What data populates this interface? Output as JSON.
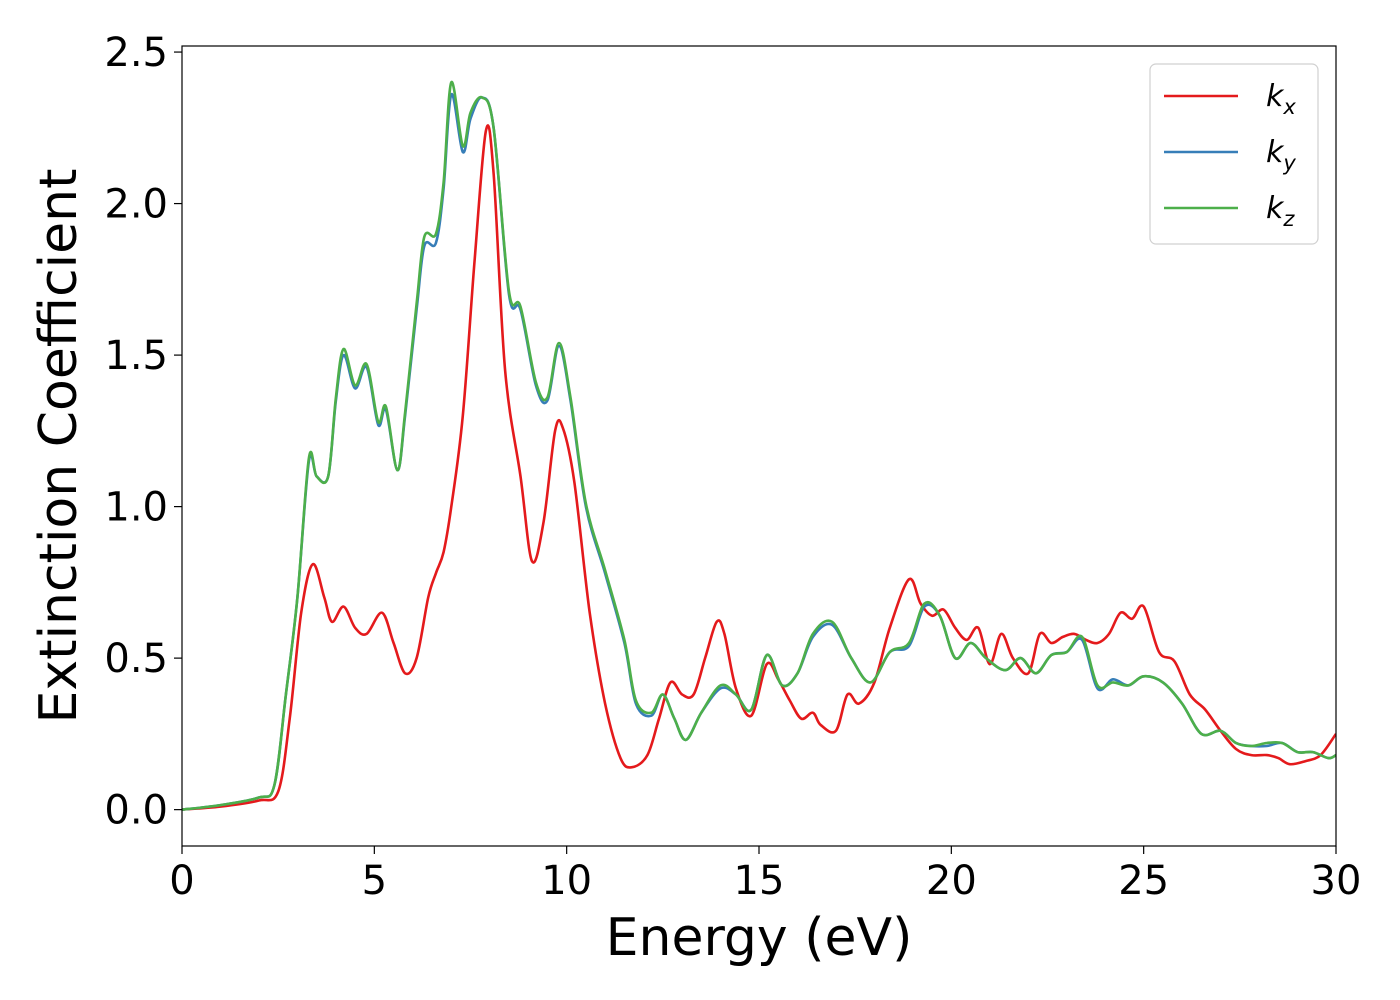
{
  "chart_data": {
    "type": "line",
    "xlabel": "Energy (eV)",
    "ylabel": "Extinction Coefficient",
    "xlim": [
      0,
      30
    ],
    "ylim": [
      -0.12,
      2.52
    ],
    "xticks": [
      0,
      5,
      10,
      15,
      20,
      25,
      30
    ],
    "xtick_labels": [
      "0",
      "5",
      "10",
      "15",
      "20",
      "25",
      "30"
    ],
    "yticks": [
      0.0,
      0.5,
      1.0,
      1.5,
      2.0,
      2.5
    ],
    "ytick_labels": [
      "0.0",
      "0.5",
      "1.0",
      "1.5",
      "2.0",
      "2.5"
    ],
    "grid": false,
    "legend_position": "top-right",
    "series": [
      {
        "name": "k",
        "subscript": "x",
        "color": "#e41a1c",
        "x": [
          0,
          1,
          2,
          2.5,
          2.8,
          3.1,
          3.4,
          3.7,
          3.9,
          4.2,
          4.5,
          4.8,
          5.2,
          5.5,
          5.8,
          6.1,
          6.4,
          6.6,
          6.8,
          7.0,
          7.3,
          7.6,
          7.9,
          8.1,
          8.4,
          8.8,
          9.1,
          9.4,
          9.7,
          9.9,
          10.2,
          10.6,
          11.0,
          11.4,
          11.7,
          12.1,
          12.4,
          12.7,
          13.0,
          13.3,
          13.6,
          13.9,
          14.1,
          14.4,
          14.8,
          15.2,
          15.5,
          15.8,
          16.1,
          16.4,
          16.6,
          17.0,
          17.3,
          17.6,
          18.0,
          18.4,
          18.9,
          19.2,
          19.5,
          19.8,
          20.1,
          20.4,
          20.7,
          21.0,
          21.3,
          21.6,
          22.0,
          22.3,
          22.6,
          22.9,
          23.2,
          23.5,
          23.8,
          24.1,
          24.4,
          24.7,
          25.0,
          25.4,
          25.8,
          26.2,
          26.6,
          27.0,
          27.4,
          27.8,
          28.2,
          28.5,
          28.8,
          29.2,
          29.6,
          30.0
        ],
        "y": [
          0.0,
          0.01,
          0.03,
          0.06,
          0.3,
          0.65,
          0.81,
          0.7,
          0.62,
          0.67,
          0.6,
          0.58,
          0.65,
          0.55,
          0.45,
          0.5,
          0.7,
          0.78,
          0.85,
          1.0,
          1.3,
          1.8,
          2.24,
          2.1,
          1.45,
          1.1,
          0.82,
          0.95,
          1.25,
          1.26,
          1.08,
          0.65,
          0.35,
          0.17,
          0.14,
          0.18,
          0.3,
          0.42,
          0.38,
          0.38,
          0.5,
          0.62,
          0.58,
          0.4,
          0.31,
          0.48,
          0.43,
          0.36,
          0.3,
          0.32,
          0.28,
          0.26,
          0.38,
          0.35,
          0.42,
          0.6,
          0.76,
          0.68,
          0.64,
          0.66,
          0.6,
          0.56,
          0.6,
          0.48,
          0.58,
          0.5,
          0.45,
          0.58,
          0.55,
          0.57,
          0.58,
          0.56,
          0.55,
          0.58,
          0.65,
          0.63,
          0.67,
          0.52,
          0.49,
          0.38,
          0.33,
          0.26,
          0.2,
          0.18,
          0.18,
          0.17,
          0.15,
          0.16,
          0.18,
          0.25
        ]
      },
      {
        "name": "k",
        "subscript": "y",
        "color": "#377eb8",
        "x": [
          0,
          1,
          2,
          2.4,
          2.7,
          3.0,
          3.3,
          3.5,
          3.8,
          4.0,
          4.2,
          4.5,
          4.8,
          5.1,
          5.3,
          5.6,
          5.8,
          6.1,
          6.3,
          6.6,
          6.8,
          7.0,
          7.3,
          7.5,
          7.8,
          8.1,
          8.5,
          8.8,
          9.2,
          9.5,
          9.8,
          10.1,
          10.5,
          11.0,
          11.5,
          11.8,
          12.2,
          12.5,
          12.8,
          13.1,
          13.5,
          14.0,
          14.4,
          14.8,
          15.2,
          15.6,
          16.0,
          16.4,
          16.9,
          17.4,
          17.9,
          18.4,
          18.9,
          19.3,
          19.7,
          20.1,
          20.5,
          20.9,
          21.4,
          21.8,
          22.2,
          22.6,
          23.0,
          23.4,
          23.8,
          24.2,
          24.6,
          25.0,
          25.5,
          26.0,
          26.5,
          27.0,
          27.4,
          27.8,
          28.2,
          28.6,
          29.0,
          29.4,
          29.8,
          30.0
        ],
        "y": [
          0.0,
          0.015,
          0.04,
          0.08,
          0.38,
          0.7,
          1.15,
          1.1,
          1.1,
          1.35,
          1.5,
          1.39,
          1.46,
          1.27,
          1.32,
          1.12,
          1.3,
          1.65,
          1.86,
          1.87,
          2.05,
          2.36,
          2.17,
          2.28,
          2.35,
          2.25,
          1.7,
          1.65,
          1.4,
          1.35,
          1.53,
          1.35,
          1.0,
          0.78,
          0.55,
          0.35,
          0.31,
          0.38,
          0.3,
          0.23,
          0.32,
          0.4,
          0.38,
          0.33,
          0.51,
          0.41,
          0.45,
          0.57,
          0.61,
          0.5,
          0.42,
          0.52,
          0.54,
          0.67,
          0.64,
          0.5,
          0.55,
          0.5,
          0.46,
          0.5,
          0.45,
          0.51,
          0.52,
          0.56,
          0.4,
          0.43,
          0.41,
          0.44,
          0.42,
          0.35,
          0.25,
          0.26,
          0.22,
          0.21,
          0.21,
          0.22,
          0.19,
          0.19,
          0.17,
          0.18
        ]
      },
      {
        "name": "k",
        "subscript": "z",
        "color": "#4daf4a",
        "x": [
          0,
          1,
          2,
          2.4,
          2.7,
          3.0,
          3.3,
          3.5,
          3.8,
          4.0,
          4.2,
          4.5,
          4.8,
          5.1,
          5.3,
          5.6,
          5.8,
          6.1,
          6.3,
          6.6,
          6.8,
          7.0,
          7.3,
          7.5,
          7.8,
          8.1,
          8.5,
          8.8,
          9.2,
          9.5,
          9.8,
          10.1,
          10.5,
          11.0,
          11.5,
          11.8,
          12.2,
          12.5,
          12.8,
          13.1,
          13.5,
          14.0,
          14.4,
          14.8,
          15.2,
          15.6,
          16.0,
          16.4,
          16.9,
          17.4,
          17.9,
          18.4,
          18.9,
          19.3,
          19.7,
          20.1,
          20.5,
          20.9,
          21.4,
          21.8,
          22.2,
          22.6,
          23.0,
          23.4,
          23.8,
          24.2,
          24.6,
          25.0,
          25.5,
          26.0,
          26.5,
          27.0,
          27.4,
          27.8,
          28.2,
          28.6,
          29.0,
          29.4,
          29.8,
          30.0
        ],
        "y": [
          0.0,
          0.015,
          0.04,
          0.08,
          0.38,
          0.7,
          1.16,
          1.1,
          1.1,
          1.36,
          1.52,
          1.4,
          1.47,
          1.28,
          1.33,
          1.12,
          1.31,
          1.67,
          1.89,
          1.9,
          2.07,
          2.4,
          2.19,
          2.3,
          2.35,
          2.25,
          1.71,
          1.66,
          1.41,
          1.36,
          1.54,
          1.36,
          1.01,
          0.79,
          0.56,
          0.36,
          0.32,
          0.38,
          0.3,
          0.23,
          0.32,
          0.41,
          0.38,
          0.33,
          0.51,
          0.41,
          0.45,
          0.58,
          0.62,
          0.5,
          0.42,
          0.52,
          0.55,
          0.68,
          0.64,
          0.5,
          0.55,
          0.5,
          0.46,
          0.5,
          0.45,
          0.51,
          0.52,
          0.57,
          0.41,
          0.42,
          0.41,
          0.44,
          0.42,
          0.35,
          0.25,
          0.26,
          0.22,
          0.21,
          0.22,
          0.22,
          0.19,
          0.19,
          0.17,
          0.18
        ]
      }
    ]
  }
}
